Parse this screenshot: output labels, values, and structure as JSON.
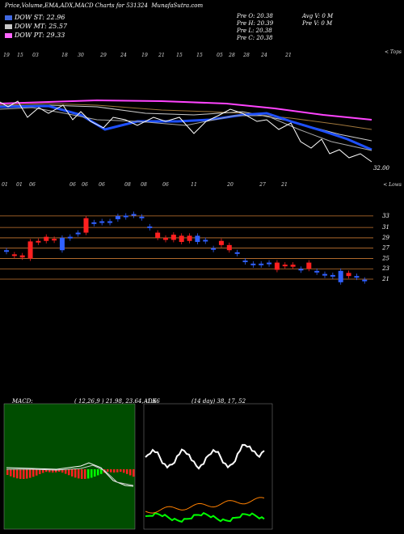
{
  "header": {
    "title": "Price,Volume,EMA,ADX,MACD Charts for 531324",
    "site": "MunafaSutra.com",
    "quote": {
      "prev_open": "Pre   O: 20.38",
      "prev_high": "Pre   H: 20.39",
      "prev_low": "Pre   L: 20.38",
      "prev_close": "Pre   C: 20.38",
      "avg_volume": "Avg V: 0   M",
      "prev_volume": "Pre   V: 0   M"
    }
  },
  "legend": [
    {
      "label": "DOW ST: 22.96",
      "color": "#4169e1"
    },
    {
      "label": "DOW MT: 25.57",
      "color": "#c8c8c8"
    },
    {
      "label": "DOW PT: 29.33",
      "color": "#ff66ff"
    }
  ],
  "colors": {
    "ema_short": "#1e50ff",
    "ema_mid": "#e8e8e8",
    "ema_long": "#ff44ff",
    "ema_brown": "#a0783c",
    "price": "#ffffff",
    "candle_up": "#3060ff",
    "candle_down": "#ff2020",
    "level_line": "#c87832",
    "macd_bg": "#004d00",
    "adx_bg": "#000000",
    "adx_green": "#00ff00",
    "adx_orange": "#ff8000"
  },
  "top_chart": {
    "corner_label": "< Tops",
    "bottom_corner_label": "< Lows",
    "last_price_label": "32.00",
    "top_dates": [
      "19",
      "15",
      "03",
      "18",
      "30",
      "29",
      "24",
      "19",
      "21",
      "15",
      "15",
      "05",
      "28",
      "28",
      "24",
      "21"
    ],
    "bottom_dates": [
      "01",
      "01",
      "06",
      "06",
      "06",
      "06",
      "08",
      "08",
      "06",
      "11",
      "20",
      "27",
      "21"
    ]
  },
  "price_axis": {
    "ticks": [
      {
        "label": "33",
        "value": 33
      },
      {
        "label": "31",
        "value": 31
      },
      {
        "label": "29",
        "value": 29
      },
      {
        "label": "27",
        "value": 27
      },
      {
        "label": "25",
        "value": 25
      },
      {
        "label": "23",
        "value": 23
      },
      {
        "label": "21",
        "value": 21
      }
    ]
  },
  "macd": {
    "title": "MACD:",
    "values": "( 12,26,9 ) 21.98, 23.64, -1.66"
  },
  "adx": {
    "title": "ADX",
    "values": "(14 day) 38, 17, 52"
  },
  "chart_data": {
    "type": "candlestick",
    "price_range": [
      20,
      34
    ],
    "candles": [
      {
        "o": 26.6,
        "c": 26.6
      },
      {
        "o": 25.8,
        "c": 25.6
      },
      {
        "o": 25.6,
        "c": 25.2
      },
      {
        "o": 28.3,
        "c": 25.0
      },
      {
        "o": 28.4,
        "c": 28.2
      },
      {
        "o": 29.2,
        "c": 28.4
      },
      {
        "o": 28.8,
        "c": 28.7
      },
      {
        "o": 26.6,
        "c": 29.0
      },
      {
        "o": 29.2,
        "c": 29.2
      },
      {
        "o": 29.8,
        "c": 30.0
      },
      {
        "o": 32.8,
        "c": 30.0
      },
      {
        "o": 32.0,
        "c": 32.0
      },
      {
        "o": 32.2,
        "c": 32.2
      },
      {
        "o": 32.2,
        "c": 32.2
      },
      {
        "o": 32.6,
        "c": 33.2
      },
      {
        "o": 33.3,
        "c": 33.3
      },
      {
        "o": 33.6,
        "c": 33.6
      },
      {
        "o": 33.1,
        "c": 33.1
      },
      {
        "o": 31.2,
        "c": 31.2
      },
      {
        "o": 30.0,
        "c": 29.0
      },
      {
        "o": 29.0,
        "c": 28.6
      },
      {
        "o": 29.6,
        "c": 28.6
      },
      {
        "o": 29.4,
        "c": 28.2
      },
      {
        "o": 29.4,
        "c": 28.4
      },
      {
        "o": 28.2,
        "c": 29.4
      },
      {
        "o": 28.6,
        "c": 28.6
      },
      {
        "o": 27.0,
        "c": 27.0
      },
      {
        "o": 28.4,
        "c": 27.6
      },
      {
        "o": 27.6,
        "c": 26.6
      },
      {
        "o": 26.2,
        "c": 26.2
      },
      {
        "o": 24.6,
        "c": 24.6
      },
      {
        "o": 24.0,
        "c": 24.0
      },
      {
        "o": 24.0,
        "c": 24.0
      },
      {
        "o": 24.2,
        "c": 24.2
      },
      {
        "o": 24.2,
        "c": 22.8
      },
      {
        "o": 23.8,
        "c": 23.6
      },
      {
        "o": 23.8,
        "c": 23.4
      },
      {
        "o": 23.0,
        "c": 23.0
      },
      {
        "o": 24.2,
        "c": 23.0
      },
      {
        "o": 22.6,
        "c": 22.6
      },
      {
        "o": 22.0,
        "c": 22.0
      },
      {
        "o": 21.8,
        "c": 21.8
      },
      {
        "o": 20.4,
        "c": 22.6
      },
      {
        "o": 22.2,
        "c": 21.6
      },
      {
        "o": 21.6,
        "c": 21.6
      },
      {
        "o": 20.9,
        "c": 20.9
      }
    ]
  }
}
